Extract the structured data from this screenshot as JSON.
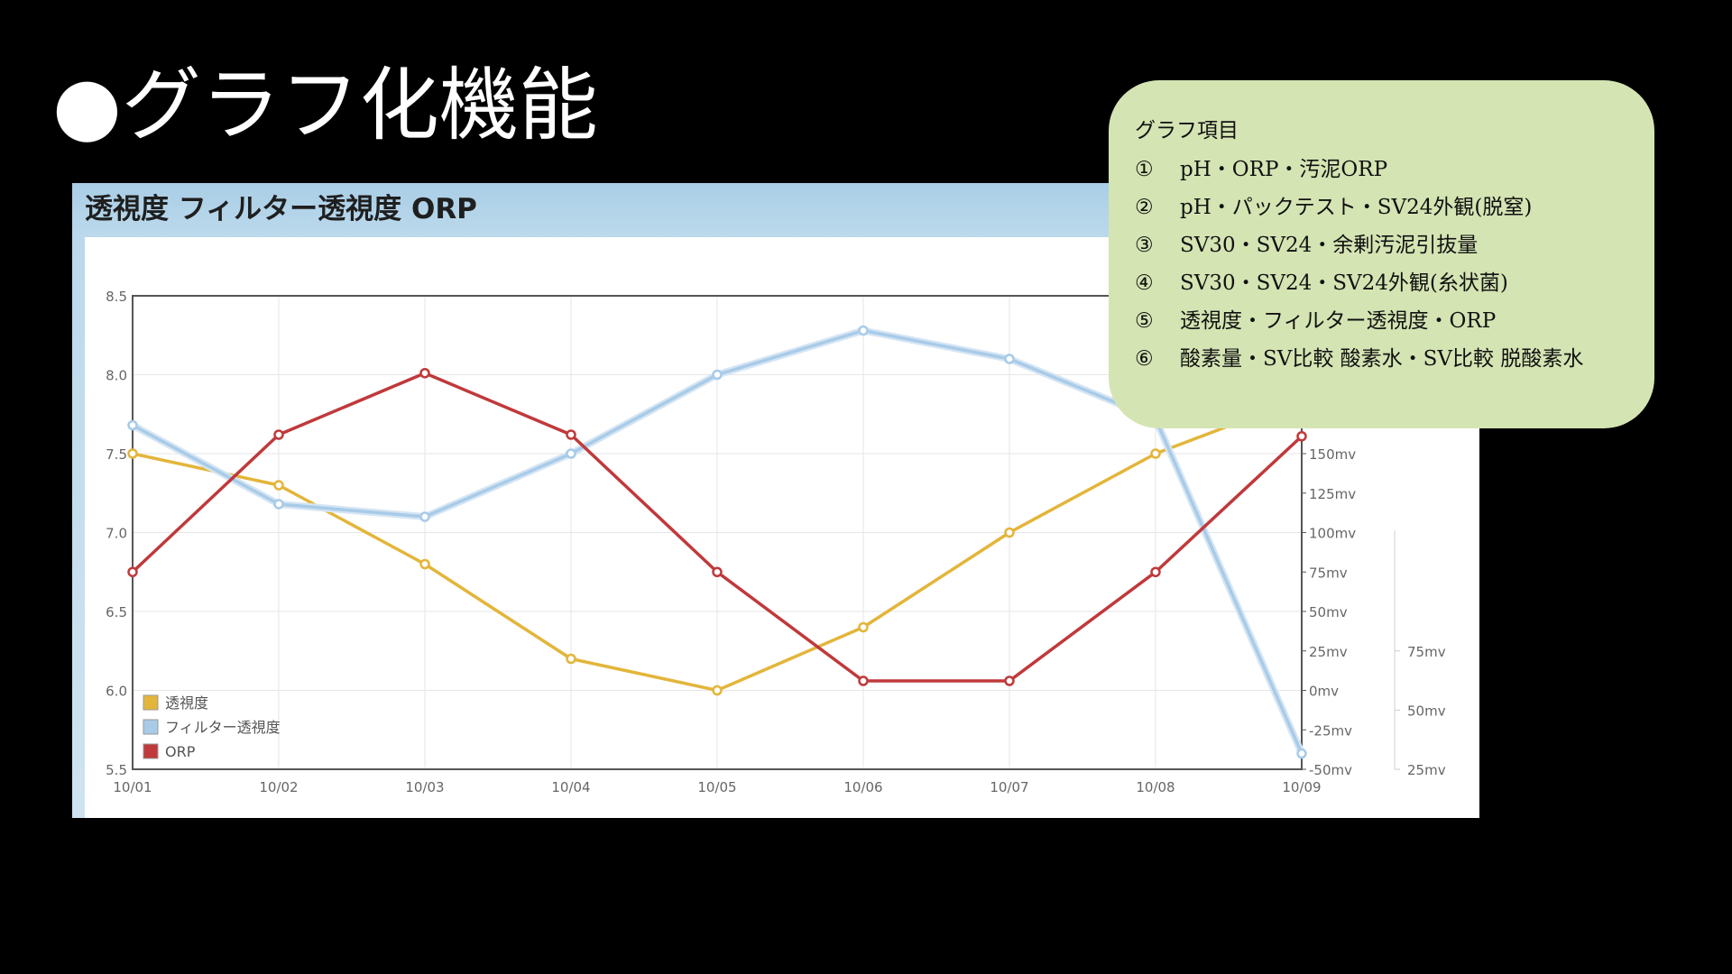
{
  "slide": {
    "title": "●グラフ化機能"
  },
  "panel": {
    "header": "透視度 フィルター透視度 ORP"
  },
  "info_box": {
    "heading": "グラフ項目",
    "items": [
      {
        "num": "①",
        "text": "pH・ORP・汚泥ORP"
      },
      {
        "num": "②",
        "text": "pH・パックテスト・SV24外観(脱窒)"
      },
      {
        "num": "③",
        "text": "SV30・SV24・余剰汚泥引抜量"
      },
      {
        "num": "④",
        "text": "SV30・SV24・SV24外観(糸状菌)"
      },
      {
        "num": "⑤",
        "text": "透視度・フィルター透視度・ORP"
      },
      {
        "num": "⑥",
        "text": "酸素量・SV比較 酸素水・SV比較 脱酸素水"
      }
    ]
  },
  "chart_data": {
    "type": "line",
    "title": "透視度 フィルター透視度 ORP",
    "categories": [
      "10/01",
      "10/02",
      "10/03",
      "10/04",
      "10/05",
      "10/06",
      "10/07",
      "10/08",
      "10/09"
    ],
    "y_left": {
      "ylim": [
        5.5,
        8.5
      ],
      "ticks": [
        "5.5",
        "6.0",
        "6.5",
        "7.0",
        "7.5",
        "8.0",
        "8.5"
      ]
    },
    "y_right_1": {
      "ylim": [
        -50,
        250
      ],
      "ticks": [
        "-50mv",
        "-25mv",
        "0mv",
        "25mv",
        "50mv",
        "75mv",
        "100mv",
        "125mv",
        "150mv"
      ]
    },
    "y_right_2": {
      "ylim": [
        25,
        125
      ],
      "ticks": [
        "25mv",
        "50mv",
        "75mv"
      ]
    },
    "grid": true,
    "legend_position": "bottom-left",
    "series": [
      {
        "name": "透視度",
        "axis": "left",
        "color": "#e3b53a",
        "values": [
          7.5,
          7.3,
          6.8,
          6.2,
          6.0,
          6.4,
          7.0,
          7.5,
          7.85
        ]
      },
      {
        "name": "フィルター透視度",
        "axis": "left",
        "color": "#a8cbe8",
        "values": [
          7.68,
          7.18,
          7.1,
          7.5,
          8.0,
          8.28,
          8.1,
          7.72,
          5.6
        ]
      },
      {
        "name": "ORP",
        "axis": "right_1",
        "color": "#c0393b",
        "values": [
          75,
          162,
          201,
          162,
          75,
          6,
          6,
          75,
          161
        ]
      }
    ]
  }
}
